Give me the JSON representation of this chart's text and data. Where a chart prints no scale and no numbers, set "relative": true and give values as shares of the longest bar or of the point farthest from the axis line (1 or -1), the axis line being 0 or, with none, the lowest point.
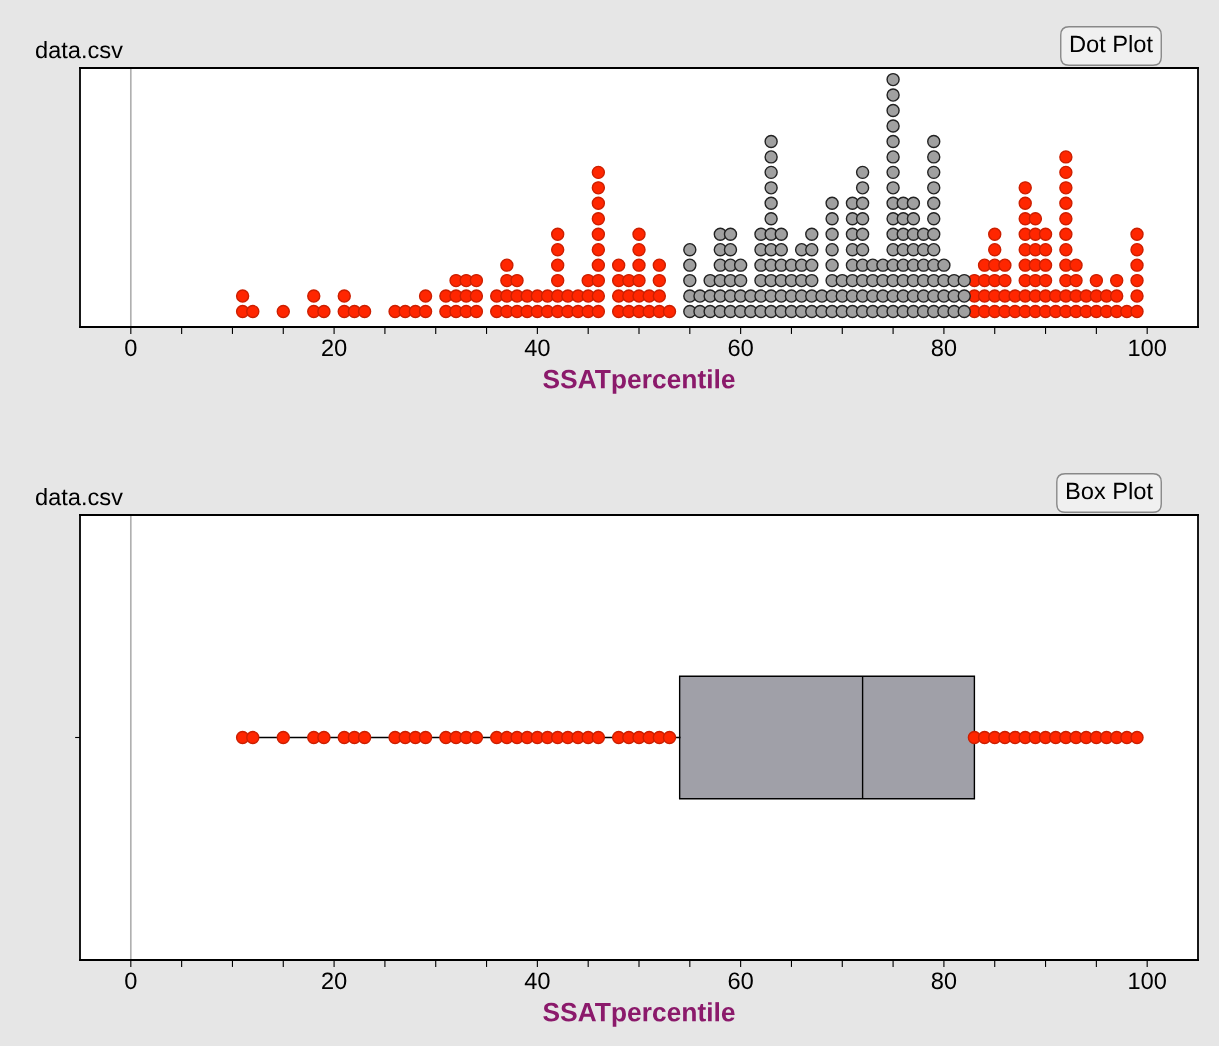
{
  "chart_data": [
    {
      "type": "scatter",
      "title": "data.csv",
      "xlabel": "SSATpercentile",
      "annotations": [
        "Dot Plot"
      ],
      "xlim": [
        -5,
        105
      ],
      "xticks": [
        0,
        {
          "value": 5,
          "label": null
        },
        {
          "value": 10,
          "label": null
        },
        {
          "value": 15,
          "label": null
        },
        20,
        {
          "value": 25,
          "label": null
        },
        {
          "value": 30,
          "label": null
        },
        {
          "value": 35,
          "label": null
        },
        40,
        {
          "value": 45,
          "label": null
        },
        {
          "value": 50,
          "label": null
        },
        {
          "value": 55,
          "label": null
        },
        60,
        {
          "value": 65,
          "label": null
        },
        {
          "value": 70,
          "label": null
        },
        {
          "value": 75,
          "label": null
        },
        80,
        {
          "value": 85,
          "label": null
        },
        {
          "value": 90,
          "label": null
        },
        {
          "value": 95,
          "label": null
        },
        100
      ],
      "relative": true,
      "tick_labels": "x",
      "grid": false,
      "legend": false,
      "marker": "circle",
      "ref_lines": [
        {
          "axis": "x",
          "value": 0,
          "color": "#b0b0b0"
        }
      ],
      "series": [
        {
          "color": "#ff2600",
          "x": [
            11,
            11,
            12,
            15,
            18,
            18,
            19,
            21,
            21,
            22,
            23,
            26,
            27,
            28,
            29,
            29,
            31,
            31,
            32,
            32,
            32,
            33,
            33,
            33,
            34,
            34,
            34,
            36,
            36,
            37,
            37,
            37,
            37,
            38,
            38,
            38,
            39,
            39,
            40,
            40,
            41,
            41,
            42,
            42,
            42,
            42,
            42,
            42,
            43,
            43,
            44,
            44,
            45,
            45,
            45,
            46,
            46,
            46,
            46,
            46,
            46,
            46,
            46,
            46,
            46,
            48,
            48,
            48,
            48,
            49,
            49,
            49,
            50,
            50,
            50,
            50,
            50,
            50,
            51,
            51,
            52,
            52,
            52,
            52,
            53,
            83,
            83,
            83,
            84,
            84,
            84,
            84,
            85,
            85,
            85,
            85,
            85,
            85,
            86,
            86,
            86,
            86,
            87,
            87,
            88,
            88,
            88,
            88,
            88,
            88,
            88,
            88,
            88,
            89,
            89,
            89,
            89,
            89,
            89,
            89,
            90,
            90,
            90,
            90,
            90,
            90,
            91,
            91,
            92,
            92,
            92,
            92,
            92,
            92,
            92,
            92,
            92,
            92,
            92,
            93,
            93,
            93,
            93,
            94,
            94,
            95,
            95,
            95,
            96,
            96,
            97,
            97,
            97,
            98,
            99,
            99,
            99,
            99,
            99,
            99
          ],
          "values": [
            0.0625,
            0.125,
            0.0625,
            0.0625,
            0.0625,
            0.125,
            0.0625,
            0.0625,
            0.125,
            0.0625,
            0.0625,
            0.0625,
            0.0625,
            0.0625,
            0.0625,
            0.125,
            0.0625,
            0.125,
            0.0625,
            0.125,
            0.1875,
            0.0625,
            0.125,
            0.1875,
            0.0625,
            0.125,
            0.1875,
            0.0625,
            0.125,
            0.0625,
            0.125,
            0.1875,
            0.25,
            0.0625,
            0.125,
            0.1875,
            0.0625,
            0.125,
            0.0625,
            0.125,
            0.0625,
            0.125,
            0.0625,
            0.125,
            0.1875,
            0.25,
            0.3125,
            0.375,
            0.0625,
            0.125,
            0.0625,
            0.125,
            0.0625,
            0.125,
            0.1875,
            0.0625,
            0.125,
            0.1875,
            0.25,
            0.3125,
            0.375,
            0.4375,
            0.5,
            0.5625,
            0.625,
            0.0625,
            0.125,
            0.1875,
            0.25,
            0.0625,
            0.125,
            0.1875,
            0.0625,
            0.125,
            0.1875,
            0.25,
            0.3125,
            0.375,
            0.0625,
            0.125,
            0.0625,
            0.125,
            0.1875,
            0.25,
            0.0625,
            0.0625,
            0.125,
            0.1875,
            0.0625,
            0.125,
            0.1875,
            0.25,
            0.0625,
            0.125,
            0.1875,
            0.25,
            0.3125,
            0.375,
            0.0625,
            0.125,
            0.1875,
            0.25,
            0.0625,
            0.125,
            0.0625,
            0.125,
            0.1875,
            0.25,
            0.3125,
            0.375,
            0.4375,
            0.5,
            0.5625,
            0.0625,
            0.125,
            0.1875,
            0.25,
            0.3125,
            0.375,
            0.4375,
            0.0625,
            0.125,
            0.1875,
            0.25,
            0.3125,
            0.375,
            0.0625,
            0.125,
            0.0625,
            0.125,
            0.1875,
            0.25,
            0.3125,
            0.375,
            0.4375,
            0.5,
            0.5625,
            0.625,
            0.6875,
            0.0625,
            0.125,
            0.1875,
            0.25,
            0.0625,
            0.125,
            0.0625,
            0.125,
            0.1875,
            0.0625,
            0.125,
            0.0625,
            0.125,
            0.1875,
            0.0625,
            0.0625,
            0.125,
            0.1875,
            0.25,
            0.3125,
            0.375
          ]
        },
        {
          "color": "#a0a0a0",
          "x": [
            55,
            55,
            55,
            55,
            55,
            56,
            56,
            57,
            57,
            57,
            58,
            58,
            58,
            58,
            58,
            58,
            59,
            59,
            59,
            59,
            59,
            59,
            60,
            60,
            60,
            60,
            61,
            61,
            62,
            62,
            62,
            62,
            62,
            62,
            63,
            63,
            63,
            63,
            63,
            63,
            63,
            63,
            63,
            63,
            63,
            63,
            64,
            64,
            64,
            64,
            64,
            64,
            65,
            65,
            65,
            65,
            66,
            66,
            66,
            66,
            66,
            67,
            67,
            67,
            67,
            67,
            67,
            68,
            68,
            69,
            69,
            69,
            69,
            69,
            69,
            69,
            69,
            70,
            70,
            70,
            71,
            71,
            71,
            71,
            71,
            71,
            71,
            71,
            72,
            72,
            72,
            72,
            72,
            72,
            72,
            72,
            72,
            72,
            73,
            73,
            73,
            73,
            74,
            74,
            74,
            74,
            75,
            75,
            75,
            75,
            75,
            75,
            75,
            75,
            75,
            75,
            75,
            75,
            75,
            75,
            75,
            75,
            76,
            76,
            76,
            76,
            76,
            76,
            76,
            76,
            77,
            77,
            77,
            77,
            77,
            77,
            77,
            77,
            78,
            78,
            78,
            78,
            78,
            78,
            79,
            79,
            79,
            79,
            79,
            79,
            79,
            79,
            79,
            79,
            79,
            79,
            80,
            80,
            80,
            80,
            81,
            81,
            81,
            82,
            82,
            82
          ],
          "values": [
            0.0625,
            0.125,
            0.1875,
            0.25,
            0.3125,
            0.0625,
            0.125,
            0.0625,
            0.125,
            0.1875,
            0.0625,
            0.125,
            0.1875,
            0.25,
            0.3125,
            0.375,
            0.0625,
            0.125,
            0.1875,
            0.25,
            0.3125,
            0.375,
            0.0625,
            0.125,
            0.1875,
            0.25,
            0.0625,
            0.125,
            0.0625,
            0.125,
            0.1875,
            0.25,
            0.3125,
            0.375,
            0.0625,
            0.125,
            0.1875,
            0.25,
            0.3125,
            0.375,
            0.4375,
            0.5,
            0.5625,
            0.625,
            0.6875,
            0.75,
            0.0625,
            0.125,
            0.1875,
            0.25,
            0.3125,
            0.375,
            0.0625,
            0.125,
            0.1875,
            0.25,
            0.0625,
            0.125,
            0.1875,
            0.25,
            0.3125,
            0.0625,
            0.125,
            0.1875,
            0.25,
            0.3125,
            0.375,
            0.0625,
            0.125,
            0.0625,
            0.125,
            0.1875,
            0.25,
            0.3125,
            0.375,
            0.4375,
            0.5,
            0.0625,
            0.125,
            0.1875,
            0.0625,
            0.125,
            0.1875,
            0.25,
            0.3125,
            0.375,
            0.4375,
            0.5,
            0.0625,
            0.125,
            0.1875,
            0.25,
            0.3125,
            0.375,
            0.4375,
            0.5,
            0.5625,
            0.625,
            0.0625,
            0.125,
            0.1875,
            0.25,
            0.0625,
            0.125,
            0.1875,
            0.25,
            0.0625,
            0.125,
            0.1875,
            0.25,
            0.3125,
            0.375,
            0.4375,
            0.5,
            0.5625,
            0.625,
            0.6875,
            0.75,
            0.8125,
            0.875,
            0.9375,
            1,
            0.0625,
            0.125,
            0.1875,
            0.25,
            0.3125,
            0.375,
            0.4375,
            0.5,
            0.0625,
            0.125,
            0.1875,
            0.25,
            0.3125,
            0.375,
            0.4375,
            0.5,
            0.0625,
            0.125,
            0.1875,
            0.25,
            0.3125,
            0.375,
            0.0625,
            0.125,
            0.1875,
            0.25,
            0.3125,
            0.375,
            0.4375,
            0.5,
            0.5625,
            0.625,
            0.6875,
            0.75,
            0.0625,
            0.125,
            0.1875,
            0.25,
            0.0625,
            0.125,
            0.1875,
            0.0625,
            0.125,
            0.1875
          ]
        }
      ]
    },
    {
      "type": "box",
      "orientation": "horizontal",
      "title": "data.csv",
      "xlabel": "SSATpercentile",
      "annotations": [
        "Box Plot"
      ],
      "categories": [
        null
      ],
      "xlim": [
        -5,
        105
      ],
      "xticks": [
        0,
        {
          "value": 5,
          "label": null
        },
        {
          "value": 10,
          "label": null
        },
        {
          "value": 15,
          "label": null
        },
        20,
        {
          "value": 25,
          "label": null
        },
        {
          "value": 30,
          "label": null
        },
        {
          "value": 35,
          "label": null
        },
        40,
        {
          "value": 45,
          "label": null
        },
        {
          "value": 50,
          "label": null
        },
        {
          "value": 55,
          "label": null
        },
        60,
        {
          "value": 65,
          "label": null
        },
        {
          "value": 70,
          "label": null
        },
        {
          "value": 75,
          "label": null
        },
        80,
        {
          "value": 85,
          "label": null
        },
        {
          "value": 90,
          "label": null
        },
        {
          "value": 95,
          "label": null
        },
        100
      ],
      "tick_labels": "x",
      "grid": false,
      "legend": false,
      "ref_lines": [
        {
          "axis": "x",
          "value": 0,
          "color": "#b0b0b0"
        }
      ],
      "boxes": [
        {
          "low": 11,
          "q1": 54,
          "median": 72,
          "q3": 83,
          "high": 99
        }
      ],
      "color": "#a0a0a8",
      "series": [
        {
          "type": "scatter",
          "color": "#ff2600",
          "x": [
            null,
            null,
            null,
            null,
            null,
            null,
            null,
            null,
            null,
            null,
            null,
            null,
            null,
            null,
            null,
            null,
            null,
            null,
            null,
            null,
            null,
            null,
            null,
            null,
            null,
            null,
            null,
            null,
            null,
            null,
            null,
            null,
            null,
            null,
            null,
            null,
            null,
            null,
            null,
            null,
            null,
            null,
            null,
            null,
            null,
            null,
            null,
            null,
            null,
            null
          ],
          "values": [
            11,
            12,
            15,
            18,
            19,
            21,
            22,
            23,
            26,
            27,
            28,
            29,
            31,
            32,
            33,
            34,
            36,
            37,
            38,
            39,
            40,
            41,
            42,
            43,
            44,
            45,
            46,
            48,
            49,
            50,
            51,
            52,
            53,
            83,
            84,
            85,
            86,
            87,
            88,
            89,
            90,
            91,
            92,
            93,
            94,
            95,
            96,
            97,
            98,
            99
          ]
        }
      ]
    }
  ]
}
